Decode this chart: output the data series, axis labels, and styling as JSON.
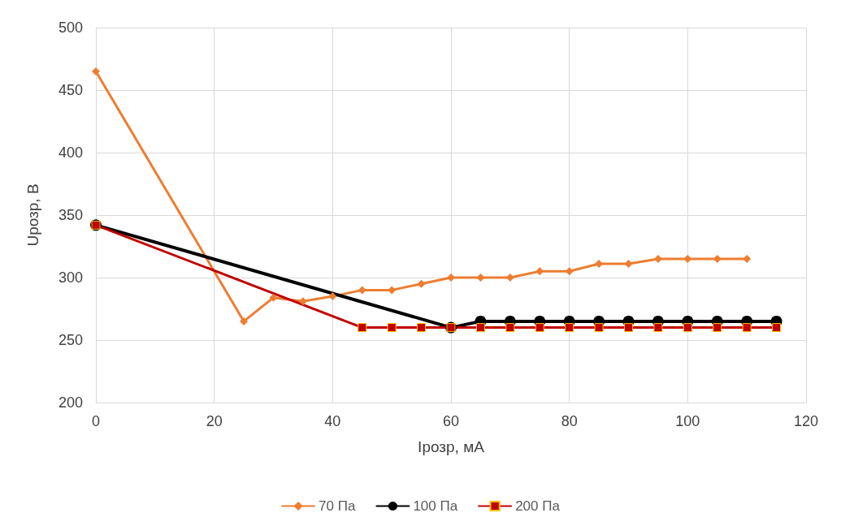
{
  "chart_data": {
    "type": "line",
    "xlabel": "Iрозр, мА",
    "ylabel": "Uрозр, В",
    "xlim": [
      0,
      120
    ],
    "xticks": [
      0,
      20,
      40,
      60,
      80,
      100,
      120
    ],
    "ylim": [
      200,
      500
    ],
    "yticks": [
      200,
      250,
      300,
      350,
      400,
      450,
      500
    ],
    "grid": true,
    "legend": "bottom",
    "line_style": "solid",
    "series": [
      {
        "name": "70 Па",
        "color": "#ed7d31",
        "marker": "diamond",
        "x": [
          0,
          25,
          30,
          35,
          40,
          45,
          50,
          55,
          60,
          65,
          70,
          75,
          80,
          85,
          90,
          95,
          100,
          105,
          110
        ],
        "values": [
          465,
          265,
          284,
          281,
          285,
          290,
          290,
          295,
          300,
          300,
          300,
          305,
          305,
          311,
          311,
          315,
          315,
          315,
          315
        ]
      },
      {
        "name": "100 Па",
        "color": "#000000",
        "marker": "circle",
        "x": [
          0,
          60,
          65,
          70,
          75,
          80,
          85,
          90,
          95,
          100,
          105,
          110,
          115
        ],
        "values": [
          342,
          260,
          265,
          265,
          265,
          265,
          265,
          265,
          265,
          265,
          265,
          265,
          265
        ]
      },
      {
        "name": "200 Па",
        "color": "#c00000",
        "marker": "square",
        "x": [
          0,
          45,
          50,
          55,
          60,
          65,
          70,
          75,
          80,
          85,
          90,
          95,
          100,
          105,
          110,
          115
        ],
        "values": [
          342,
          260,
          260,
          260,
          260,
          260,
          260,
          260,
          260,
          260,
          260,
          260,
          260,
          260,
          260,
          260
        ]
      }
    ]
  }
}
